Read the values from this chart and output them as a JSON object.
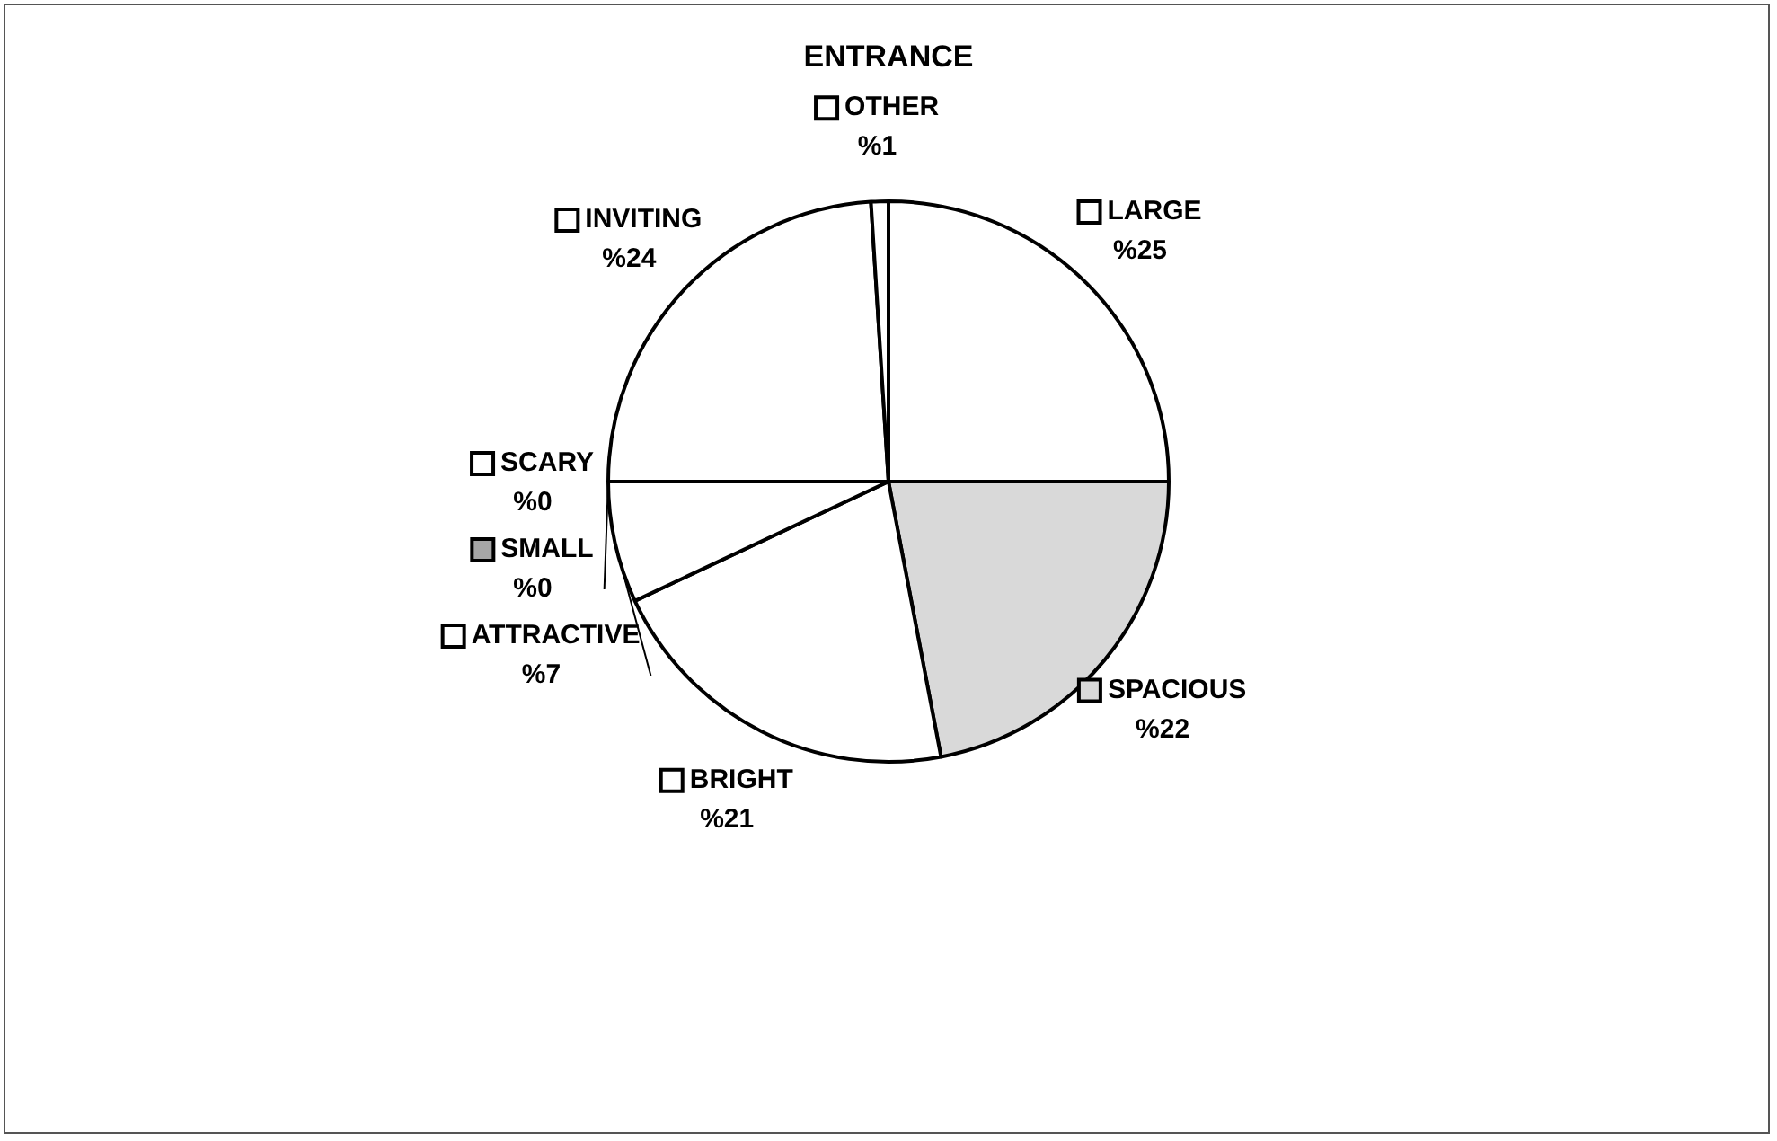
{
  "chart_data": {
    "type": "pie",
    "title": "ENTRANCE",
    "categories": [
      "LARGE",
      "SPACIOUS",
      "BRIGHT",
      "ATTRACTIVE",
      "SMALL",
      "SCARY",
      "INVITING",
      "OTHER"
    ],
    "values": [
      25,
      22,
      21,
      7,
      0,
      0,
      24,
      1
    ],
    "value_labels": [
      "%25",
      "%22",
      "%21",
      "%7",
      "%0",
      "%0",
      "%24",
      "%1"
    ],
    "colors": [
      "#ffffff",
      "#d9d9d9",
      "#ffffff",
      "#ffffff",
      "#a6a6a6",
      "#ffffff",
      "#ffffff",
      "#ffffff"
    ],
    "legend": "top left"
  }
}
